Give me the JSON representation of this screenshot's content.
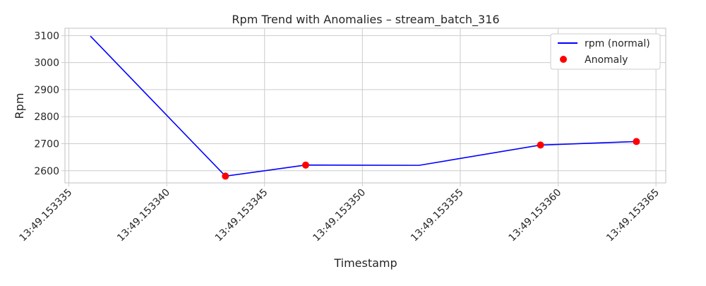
{
  "chart_data": {
    "type": "line",
    "title": "Rpm Trend with Anomalies – stream_batch_316",
    "xlabel": "Timestamp",
    "ylabel": "Rpm",
    "x_ticks": [
      "13:49.153335",
      "13:49.153340",
      "13:49.153345",
      "13:49.153350",
      "13:49.153355",
      "13:49.153360",
      "13:49.153365"
    ],
    "x_tick_values": [
      335.0,
      340.0,
      345.0,
      350.0,
      355.0,
      360.0,
      365.0
    ],
    "y_ticks": [
      2600,
      2700,
      2800,
      2900,
      3000,
      3100
    ],
    "xlim": [
      334.8,
      365.5
    ],
    "ylim": [
      2555,
      3127
    ],
    "grid": true,
    "legend_position": "top-right",
    "series": [
      {
        "name": "rpm (normal)",
        "kind": "line",
        "color": "#0000ff",
        "x": [
          336.1,
          343.0,
          347.1,
          352.9,
          359.1,
          364.0
        ],
        "y": [
          3098,
          2580,
          2621,
          2620,
          2695,
          2708
        ]
      },
      {
        "name": "Anomaly",
        "kind": "scatter",
        "color": "#ff0000",
        "x": [
          343.0,
          347.1,
          359.1,
          364.0
        ],
        "y": [
          2580,
          2621,
          2695,
          2708
        ]
      }
    ]
  }
}
